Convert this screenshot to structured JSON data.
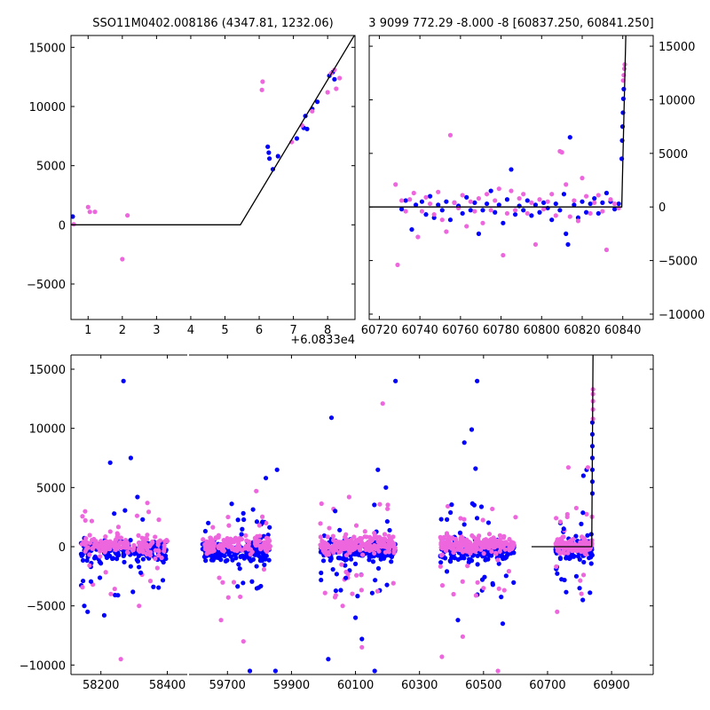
{
  "chart_data": [
    {
      "id": "top-left",
      "type": "scatter",
      "title": "SSO11M0402.008186 (4347.81, 1232.06)",
      "xlabel": "",
      "ylabel": "",
      "offset_label": "+6.0833e4",
      "xlim": [
        0.5,
        8.8
      ],
      "ylim": [
        -8000,
        16000
      ],
      "xticks": [
        1,
        2,
        3,
        4,
        5,
        6,
        7,
        8
      ],
      "yticks": [
        -5000,
        0,
        5000,
        10000,
        15000
      ],
      "grid": false,
      "colors": {
        "blue": "#0000ff",
        "pink": "#ee66dd",
        "line": "#000000"
      },
      "model_line": [
        [
          0.5,
          0
        ],
        [
          5.45,
          0
        ],
        [
          8.8,
          16100
        ]
      ],
      "series": [
        {
          "color": "blue",
          "points": [
            [
              0.55,
              700
            ],
            [
              6.25,
              6600
            ],
            [
              6.28,
              6100
            ],
            [
              6.3,
              5600
            ],
            [
              6.4,
              4700
            ],
            [
              6.55,
              5800
            ],
            [
              7.1,
              7300
            ],
            [
              7.3,
              8200
            ],
            [
              7.35,
              9200
            ],
            [
              7.4,
              8100
            ],
            [
              7.55,
              9800
            ],
            [
              7.7,
              10400
            ],
            [
              8.05,
              12600
            ],
            [
              8.15,
              12900
            ],
            [
              8.2,
              12300
            ]
          ]
        },
        {
          "color": "pink",
          "points": [
            [
              0.58,
              50
            ],
            [
              1.0,
              1500
            ],
            [
              1.05,
              1100
            ],
            [
              1.2,
              1100
            ],
            [
              2.0,
              -2900
            ],
            [
              2.15,
              800
            ],
            [
              6.1,
              12100
            ],
            [
              6.08,
              11400
            ],
            [
              6.95,
              7000
            ],
            [
              7.25,
              8400
            ],
            [
              7.55,
              9600
            ],
            [
              8.0,
              11200
            ],
            [
              8.1,
              12800
            ],
            [
              8.2,
              13100
            ],
            [
              8.25,
              11500
            ],
            [
              8.35,
              12400
            ]
          ]
        }
      ]
    },
    {
      "id": "top-right",
      "type": "scatter",
      "title": "3 9099 772.29 -8.000 -8 [60837.250, 60841.250]",
      "xlabel": "",
      "ylabel": "",
      "xlim": [
        60715,
        60855
      ],
      "ylim": [
        -10500,
        16000
      ],
      "xticks": [
        60720,
        60740,
        60760,
        60780,
        60800,
        60820,
        60840
      ],
      "yticks": [
        -10000,
        -5000,
        0,
        5000,
        10000,
        15000
      ],
      "grid": false,
      "model_line": [
        [
          60715,
          0
        ],
        [
          60839.5,
          0
        ],
        [
          60841.5,
          16000
        ]
      ],
      "series": [
        {
          "color": "blue",
          "points": [
            [
              60731,
              -200
            ],
            [
              60733,
              600
            ],
            [
              60736,
              -2100
            ],
            [
              60738,
              200
            ],
            [
              60741,
              500
            ],
            [
              60743,
              -700
            ],
            [
              60745,
              1000
            ],
            [
              60747,
              -1000
            ],
            [
              60749,
              200
            ],
            [
              60751,
              -300
            ],
            [
              60753,
              500
            ],
            [
              60755,
              -1200
            ],
            [
              60757,
              400
            ],
            [
              60759,
              100
            ],
            [
              60761,
              -600
            ],
            [
              60763,
              900
            ],
            [
              60765,
              -300
            ],
            [
              60767,
              400
            ],
            [
              60769,
              -2500
            ],
            [
              60771,
              -300
            ],
            [
              60773,
              300
            ],
            [
              60775,
              1500
            ],
            [
              60777,
              -500
            ],
            [
              60779,
              200
            ],
            [
              60781,
              -1500
            ],
            [
              60783,
              700
            ],
            [
              60785,
              3500
            ],
            [
              60787,
              -700
            ],
            [
              60789,
              100
            ],
            [
              60791,
              -300
            ],
            [
              60793,
              600
            ],
            [
              60795,
              -800
            ],
            [
              60797,
              200
            ],
            [
              60799,
              -500
            ],
            [
              60801,
              400
            ],
            [
              60803,
              -100
            ],
            [
              60805,
              -1200
            ],
            [
              60807,
              300
            ],
            [
              60809,
              -300
            ],
            [
              60811,
              1200
            ],
            [
              60812,
              -2500
            ],
            [
              60813,
              -3500
            ],
            [
              60814,
              6500
            ],
            [
              60816,
              200
            ],
            [
              60818,
              -1000
            ],
            [
              60820,
              500
            ],
            [
              60822,
              -500
            ],
            [
              60824,
              300
            ],
            [
              60826,
              800
            ],
            [
              60828,
              -600
            ],
            [
              60830,
              400
            ],
            [
              60832,
              1300
            ],
            [
              60834,
              500
            ],
            [
              60836,
              -200
            ],
            [
              60838,
              300
            ],
            [
              60839.5,
              4500
            ],
            [
              60839.7,
              6200
            ],
            [
              60839.9,
              7500
            ],
            [
              60840.1,
              8800
            ],
            [
              60840.3,
              10100
            ],
            [
              60840.5,
              11000
            ]
          ]
        },
        {
          "color": "pink",
          "points": [
            [
              60728,
              2100
            ],
            [
              60729,
              -5400
            ],
            [
              60731,
              600
            ],
            [
              60733,
              -400
            ],
            [
              60735,
              700
            ],
            [
              60737,
              1300
            ],
            [
              60739,
              -2800
            ],
            [
              60741,
              -400
            ],
            [
              60743,
              900
            ],
            [
              60745,
              300
            ],
            [
              60747,
              -700
            ],
            [
              60749,
              1400
            ],
            [
              60751,
              -1200
            ],
            [
              60753,
              -2300
            ],
            [
              60755,
              6700
            ],
            [
              60757,
              400
            ],
            [
              60759,
              -100
            ],
            [
              60761,
              1100
            ],
            [
              60763,
              -1800
            ],
            [
              60765,
              500
            ],
            [
              60767,
              -400
            ],
            [
              60769,
              800
            ],
            [
              60771,
              -1500
            ],
            [
              60773,
              1200
            ],
            [
              60775,
              -300
            ],
            [
              60777,
              600
            ],
            [
              60779,
              1700
            ],
            [
              60781,
              -4500
            ],
            [
              60783,
              -600
            ],
            [
              60785,
              1500
            ],
            [
              60787,
              -300
            ],
            [
              60789,
              800
            ],
            [
              60791,
              1200
            ],
            [
              60793,
              -600
            ],
            [
              60795,
              400
            ],
            [
              60797,
              -3500
            ],
            [
              60799,
              700
            ],
            [
              60801,
              -200
            ],
            [
              60803,
              500
            ],
            [
              60805,
              1200
            ],
            [
              60807,
              -800
            ],
            [
              60809,
              5200
            ],
            [
              60810,
              5100
            ],
            [
              60812,
              2100
            ],
            [
              60814,
              -900
            ],
            [
              60816,
              600
            ],
            [
              60818,
              -1300
            ],
            [
              60820,
              2700
            ],
            [
              60822,
              1000
            ],
            [
              60824,
              -600
            ],
            [
              60826,
              400
            ],
            [
              60828,
              1100
            ],
            [
              60830,
              -400
            ],
            [
              60832,
              -4000
            ],
            [
              60834,
              700
            ],
            [
              60836,
              300
            ],
            [
              60838,
              -100
            ],
            [
              60840.2,
              11800
            ],
            [
              60840.5,
              12300
            ],
            [
              60840.8,
              12900
            ],
            [
              60841,
              13300
            ]
          ]
        }
      ]
    },
    {
      "id": "bottom",
      "type": "scatter",
      "title": "",
      "xlabel": "",
      "ylabel": "",
      "broken_axis": true,
      "segments": [
        {
          "xlim": [
            58110,
            58460
          ],
          "xticks": [
            58200,
            58400
          ]
        },
        {
          "xlim": [
            59580,
            61030
          ],
          "xticks": [
            59700,
            59900,
            60100,
            60300,
            60500,
            60700,
            60900
          ]
        }
      ],
      "ylim": [
        -10800,
        16200
      ],
      "yticks": [
        -10000,
        -5000,
        0,
        5000,
        10000,
        15000
      ],
      "grid": false,
      "model_line": [
        [
          60650,
          0
        ],
        [
          60838,
          0
        ],
        [
          60842,
          16200
        ]
      ],
      "clusters": [
        {
          "segment": 0,
          "xrange": [
            58140,
            58400
          ],
          "n": 300,
          "outliers_blue": [
            [
              58268,
              14000
            ],
            [
              58228,
              7100
            ],
            [
              58290,
              7500
            ],
            [
              58310,
              4200
            ],
            [
              58240,
              2800
            ],
            [
              58150,
              -5000
            ],
            [
              58160,
              -5500
            ],
            [
              58210,
              -5800
            ],
            [
              58320,
              -2200
            ]
          ],
          "outliers_pink": [
            [
              58260,
              -9500
            ],
            [
              58315,
              -5000
            ],
            [
              58340,
              3700
            ],
            [
              58230,
              -4000
            ],
            [
              58370,
              -1800
            ]
          ]
        },
        {
          "segment": 1,
          "xrange": [
            59620,
            59835
          ],
          "n": 300,
          "outliers_blue": [
            [
              59855,
              6500
            ],
            [
              59820,
              5800
            ],
            [
              59770,
              -10500
            ],
            [
              59850,
              -10500
            ],
            [
              59640,
              2000
            ]
          ],
          "outliers_pink": [
            [
              59790,
              4700
            ],
            [
              59680,
              -6200
            ],
            [
              59720,
              -3000
            ],
            [
              59800,
              1800
            ],
            [
              59750,
              -8000
            ]
          ]
        },
        {
          "segment": 1,
          "xrange": [
            59990,
            60225
          ],
          "n": 420,
          "outliers_blue": [
            [
              60025,
              10900
            ],
            [
              60225,
              14000
            ],
            [
              60170,
              6500
            ],
            [
              60195,
              5000
            ],
            [
              60100,
              -6000
            ],
            [
              60120,
              -7800
            ],
            [
              60015,
              -9500
            ],
            [
              60160,
              -10500
            ]
          ],
          "outliers_pink": [
            [
              60185,
              12100
            ],
            [
              60080,
              4200
            ],
            [
              60200,
              3200
            ],
            [
              60120,
              -8500
            ],
            [
              60060,
              -5000
            ]
          ]
        },
        {
          "segment": 1,
          "xrange": [
            60365,
            60595
          ],
          "n": 380,
          "outliers_blue": [
            [
              60463,
              9900
            ],
            [
              60480,
              14000
            ],
            [
              60440,
              8800
            ],
            [
              60475,
              6600
            ],
            [
              60420,
              -6200
            ],
            [
              60560,
              -6500
            ]
          ],
          "outliers_pink": [
            [
              60370,
              -9300
            ],
            [
              60435,
              -7600
            ],
            [
              60545,
              -10500
            ],
            [
              60500,
              -3500
            ],
            [
              60600,
              2500
            ]
          ]
        },
        {
          "segment": 1,
          "xrange": [
            60725,
            60840
          ],
          "n": 220,
          "outliers_blue": [
            [
              60822,
              6500
            ],
            [
              60812,
              6000
            ],
            [
              60790,
              -2500
            ],
            [
              60800,
              -3500
            ],
            [
              60810,
              -4500
            ],
            [
              60740,
              2000
            ]
          ],
          "outliers_pink": [
            [
              60765,
              6700
            ],
            [
              60730,
              -5500
            ],
            [
              60740,
              2100
            ],
            [
              60826,
              6700
            ]
          ]
        }
      ],
      "rise_blue": [
        [
          60840,
          4500
        ],
        [
          60840,
          5500
        ],
        [
          60840,
          6500
        ],
        [
          60840,
          7500
        ],
        [
          60840,
          8500
        ],
        [
          60840,
          9500
        ],
        [
          60840,
          10500
        ]
      ],
      "rise_pink": [
        [
          60842,
          10800
        ],
        [
          60842,
          11600
        ],
        [
          60842,
          12300
        ],
        [
          60842,
          12900
        ],
        [
          60842,
          13300
        ]
      ]
    }
  ]
}
